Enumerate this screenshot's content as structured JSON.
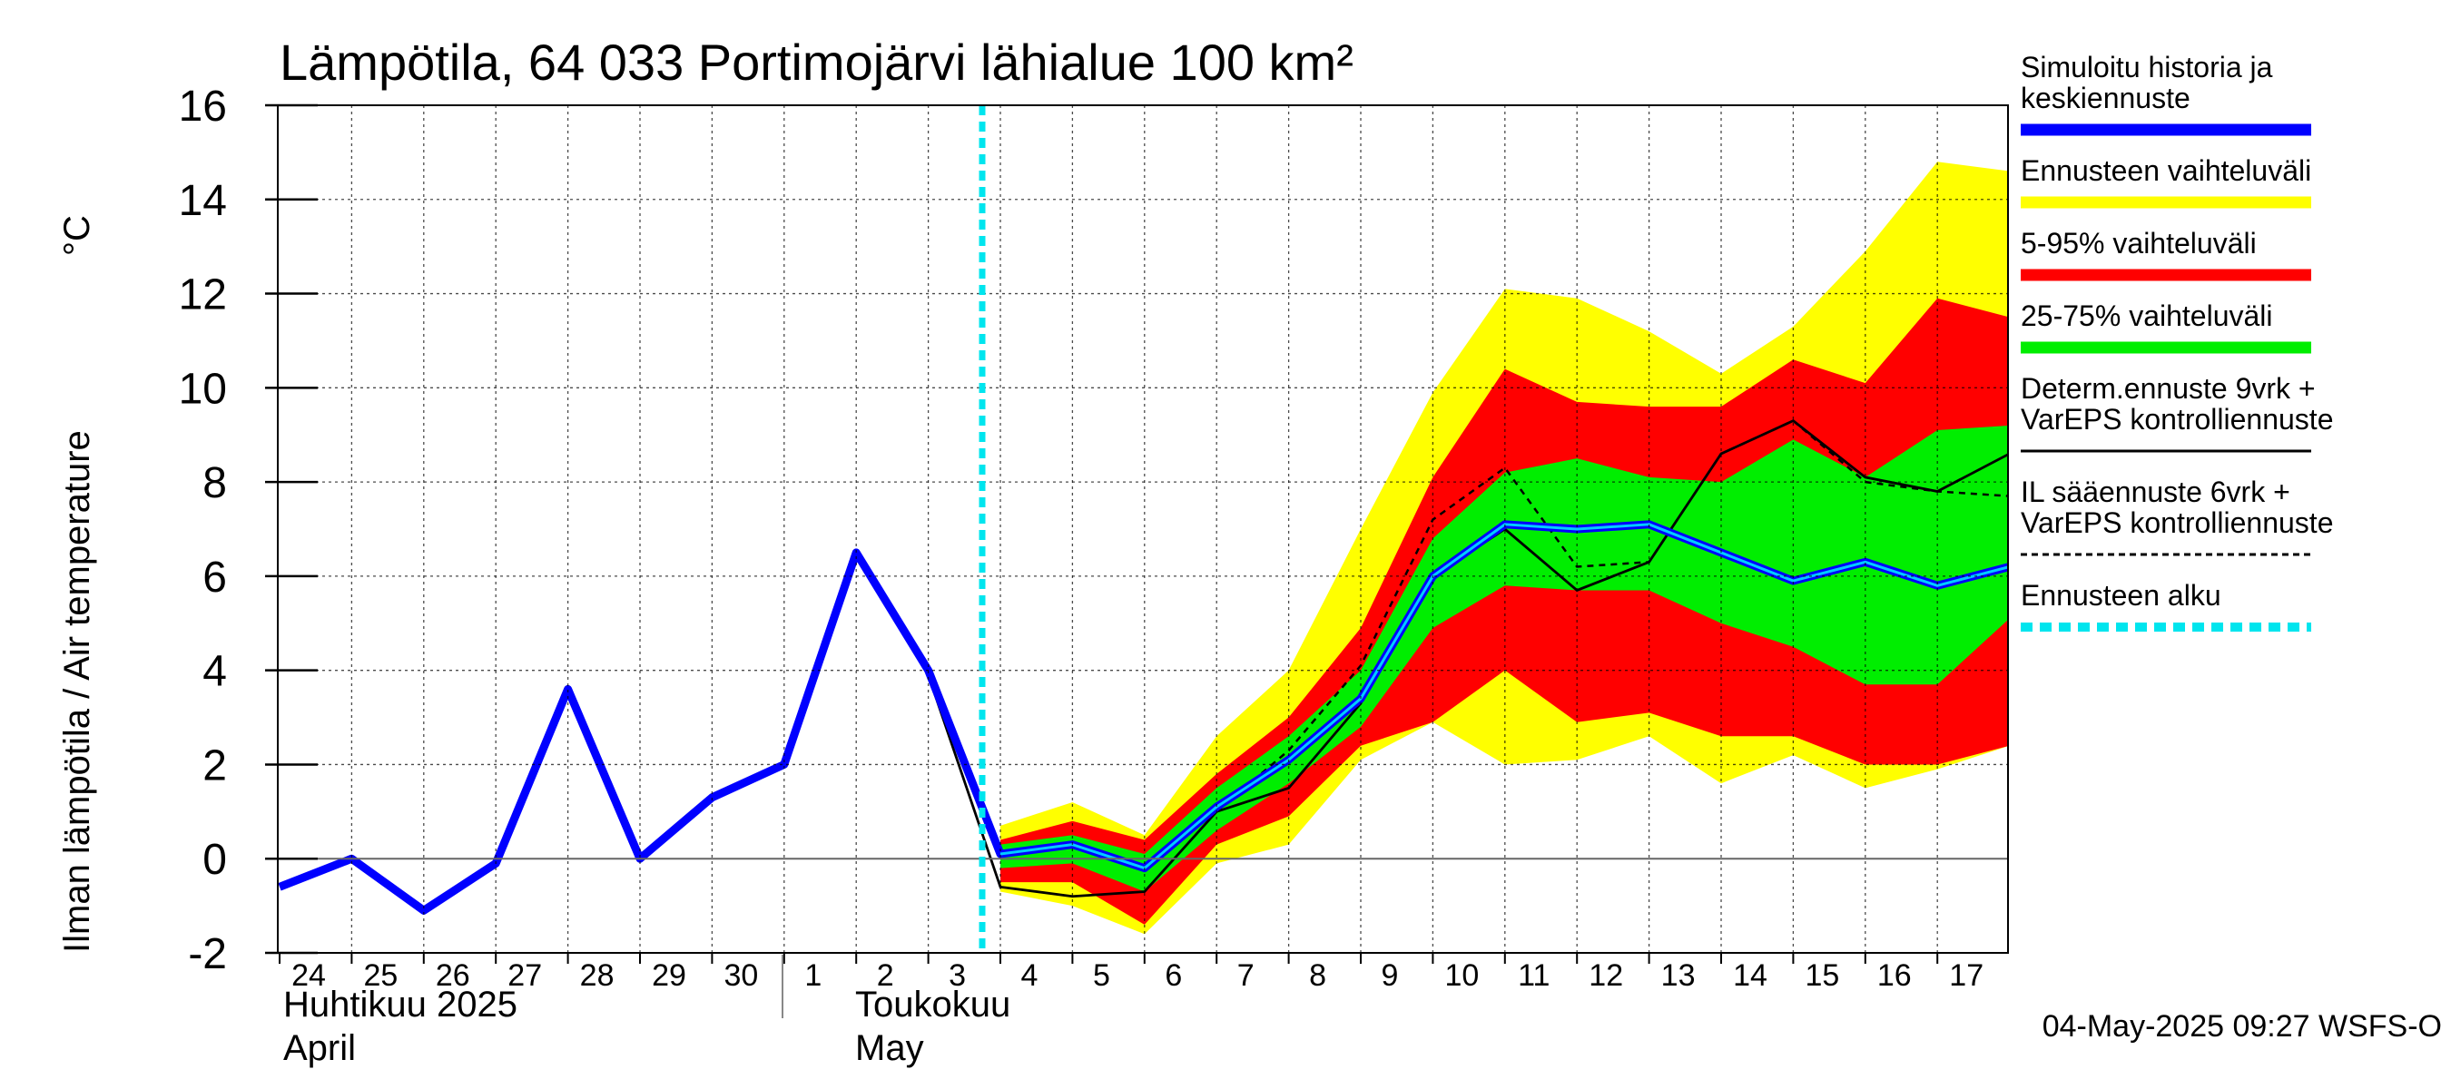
{
  "title": "Lämpötila, 64 033 Portimojärvi lähialue 100 km²",
  "ylabel": "Ilman lämpötila / Air temperature",
  "yunit": "°C",
  "footer": "04-May-2025 09:27 WSFS-O",
  "months": [
    {
      "fi": "Huhtikuu 2025",
      "en": "April"
    },
    {
      "fi": "Toukokuu",
      "en": "May"
    }
  ],
  "legend": [
    {
      "label": [
        "Simuloitu historia ja",
        "keskiennuste"
      ],
      "color": "#0000ff",
      "style": "thick"
    },
    {
      "label": [
        "Ennusteen vaihteluväli"
      ],
      "color": "#ffff00",
      "style": "thick"
    },
    {
      "label": [
        "5-95% vaihteluväli"
      ],
      "color": "#ff0000",
      "style": "thick"
    },
    {
      "label": [
        "25-75% vaihteluväli"
      ],
      "color": "#00ee00",
      "style": "thick"
    },
    {
      "label": [
        "Determ.ennuste 9vrk +",
        "VarEPS kontrolliennuste"
      ],
      "color": "#000000",
      "style": "solid"
    },
    {
      "label": [
        "IL sääennuste 6vrk  +",
        "  VarEPS kontrolliennuste"
      ],
      "color": "#000000",
      "style": "dashed"
    },
    {
      "label": [
        "Ennusteen alku"
      ],
      "color": "#00e5ee",
      "style": "dotted"
    }
  ],
  "chart_data": {
    "type": "line",
    "x_labels": [
      "24",
      "25",
      "26",
      "27",
      "28",
      "29",
      "30",
      "1",
      "2",
      "3",
      "4",
      "5",
      "6",
      "7",
      "8",
      "9",
      "10",
      "11",
      "12",
      "13",
      "14",
      "15",
      "16",
      "17"
    ],
    "ylim": [
      -2,
      16
    ],
    "yticks": [
      -2,
      0,
      2,
      4,
      6,
      8,
      10,
      12,
      14,
      16
    ],
    "forecast_start": "4",
    "grid": true,
    "x_forecast": [
      "4",
      "5",
      "6",
      "7",
      "8",
      "9",
      "10",
      "11",
      "12",
      "13",
      "14",
      "15",
      "16",
      "17",
      "18"
    ],
    "series": {
      "history_median": {
        "x": [
          "24",
          "25",
          "26",
          "27",
          "28",
          "29",
          "30",
          "1",
          "2",
          "3",
          "4",
          "5",
          "6",
          "7",
          "8",
          "9",
          "10",
          "11",
          "12",
          "13",
          "14",
          "15",
          "16",
          "17",
          "18"
        ],
        "y": [
          -0.6,
          0.0,
          -1.1,
          -0.1,
          3.6,
          0.0,
          1.3,
          2.0,
          6.5,
          4.0,
          0.1,
          0.3,
          -0.2,
          1.1,
          2.1,
          3.4,
          6.0,
          7.1,
          7.0,
          7.1,
          6.5,
          5.9,
          6.3,
          5.8,
          6.2
        ]
      },
      "full_range_upper": [
        0.7,
        1.2,
        0.5,
        2.6,
        4.0,
        7.0,
        9.9,
        12.1,
        11.9,
        11.2,
        10.3,
        11.3,
        12.9,
        14.8,
        14.6
      ],
      "full_range_lower": [
        -0.7,
        -1.0,
        -1.6,
        -0.1,
        0.3,
        2.1,
        2.9,
        2.0,
        2.1,
        2.6,
        1.6,
        2.2,
        1.5,
        1.9,
        2.4
      ],
      "p5_95_upper": [
        0.4,
        0.8,
        0.4,
        1.8,
        3.0,
        4.9,
        8.1,
        10.4,
        9.7,
        9.6,
        9.6,
        10.6,
        10.1,
        11.9,
        11.5
      ],
      "p5_95_lower": [
        -0.5,
        -0.5,
        -1.4,
        0.3,
        0.9,
        2.4,
        2.9,
        4.0,
        2.9,
        3.1,
        2.6,
        2.6,
        2.0,
        2.0,
        2.4
      ],
      "p25_75_upper": [
        0.3,
        0.5,
        0.1,
        1.5,
        2.6,
        4.0,
        6.8,
        8.2,
        8.5,
        8.1,
        8.0,
        8.9,
        8.1,
        9.1,
        9.2
      ],
      "p25_75_lower": [
        -0.2,
        -0.1,
        -0.7,
        0.6,
        1.6,
        2.8,
        4.9,
        5.8,
        5.7,
        5.7,
        5.0,
        4.5,
        3.7,
        3.7,
        5.1
      ],
      "deterministic": {
        "x": [
          "1",
          "2",
          "3",
          "4",
          "5",
          "6",
          "7",
          "8",
          "9",
          "10",
          "11",
          "12",
          "13",
          "14",
          "15",
          "16",
          "17",
          "18"
        ],
        "y": [
          2.0,
          6.5,
          3.9,
          -0.6,
          -0.8,
          -0.7,
          1.0,
          1.5,
          3.3,
          6.0,
          7.0,
          5.7,
          6.3,
          8.6,
          9.3,
          8.1,
          7.8,
          8.6
        ]
      },
      "il_forecast": {
        "x": [
          "7",
          "8",
          "9",
          "10",
          "11",
          "12",
          "13",
          "14",
          "15",
          "16",
          "17",
          "18"
        ],
        "y": [
          1.0,
          2.3,
          4.1,
          7.2,
          8.3,
          6.2,
          6.3,
          8.6,
          9.3,
          8.0,
          7.8,
          7.7
        ]
      }
    },
    "colors": {
      "history_median": "#0000ff",
      "full_range": "#ffff00",
      "p5_95": "#ff0000",
      "p25_75": "#00ee00",
      "median_forecast_overlay": "#00ccff",
      "forecast_start": "#00e5ee"
    }
  }
}
